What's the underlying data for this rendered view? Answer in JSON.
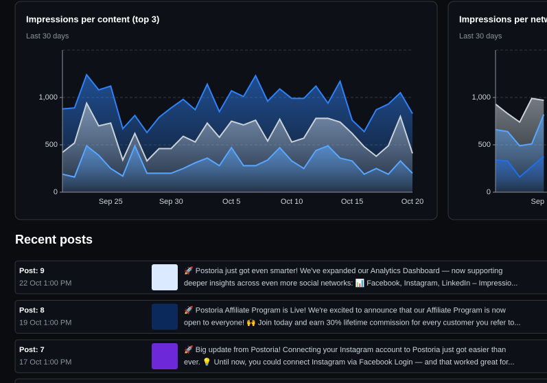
{
  "chart_data": [
    {
      "type": "area",
      "title": "Impressions per content (top 3)",
      "subtitle": "Last 30 days",
      "categories": [
        null,
        null,
        null,
        null,
        "Sep 25",
        null,
        null,
        null,
        null,
        "Sep 30",
        null,
        null,
        null,
        null,
        "Oct 5",
        null,
        null,
        null,
        null,
        "Oct 10",
        null,
        null,
        null,
        null,
        "Oct 15",
        null,
        null,
        null,
        null,
        "Oct 20"
      ],
      "ylim": [
        0,
        1500
      ],
      "yticks": [
        0,
        500,
        {
          "value": 1000,
          "label": "1,000"
        }
      ],
      "grid": true,
      "series": [
        {
          "color": "#2f81f7",
          "values": [
            880,
            890,
            1240,
            1080,
            1120,
            670,
            810,
            630,
            790,
            890,
            980,
            870,
            1140,
            850,
            1070,
            1010,
            1230,
            960,
            1090,
            990,
            990,
            1120,
            940,
            1170,
            760,
            640,
            870,
            930,
            1050,
            830
          ]
        },
        {
          "color": "#c9d1d9",
          "values": [
            420,
            520,
            940,
            700,
            730,
            340,
            620,
            330,
            460,
            460,
            590,
            530,
            730,
            580,
            750,
            710,
            760,
            540,
            770,
            530,
            570,
            780,
            780,
            740,
            620,
            480,
            380,
            490,
            800,
            410
          ]
        },
        {
          "color": "#58a6ff",
          "values": [
            190,
            160,
            490,
            390,
            250,
            170,
            490,
            200,
            200,
            200,
            250,
            310,
            360,
            280,
            470,
            280,
            280,
            340,
            470,
            330,
            250,
            440,
            490,
            360,
            330,
            190,
            250,
            190,
            330,
            200
          ]
        }
      ]
    },
    {
      "type": "area",
      "title": "Impressions per netw",
      "subtitle": "Last 30 days",
      "categories": [
        null,
        null,
        null,
        null,
        "Sep"
      ],
      "ylim": [
        0,
        1500
      ],
      "yticks": [
        0,
        500,
        {
          "value": 1000,
          "label": "1,000"
        }
      ],
      "grid": true,
      "series": [
        {
          "color": "#c9d1d9",
          "values": [
            930,
            830,
            740,
            990,
            970
          ]
        },
        {
          "color": "#58a6ff",
          "values": [
            660,
            640,
            490,
            510,
            820
          ]
        },
        {
          "color": "#1f6feb",
          "values": [
            340,
            330,
            160,
            270,
            380
          ]
        }
      ]
    }
  ],
  "recent_posts": {
    "title": "Recent posts",
    "posts": [
      {
        "title": "Post: 9",
        "date": "22 Oct 1:00 PM",
        "lines": [
          "🚀 Postoria just got even smarter! We've expanded our Analytics Dashboard — now supporting",
          "deeper insights across even more social networks: 📊 Facebook, Instagram, LinkedIn – Impressio..."
        ]
      },
      {
        "title": "Post: 8",
        "date": "19 Oct 1:00 PM",
        "lines": [
          "🚀 Postoria Affiliate Program is Live! We're excited to announce that our Affiliate Program is now",
          "open to everyone! 🙌 Join today and earn 30% lifetime commission for every customer you refer to..."
        ]
      },
      {
        "title": "Post: 7",
        "date": "17 Oct 1:00 PM",
        "lines": [
          "🚀 Big update from Postoria! Connecting your Instagram account to Postoria just got easier than",
          "ever. 💡 Until now, you could connect Instagram via Facebook Login — and that worked great for..."
        ]
      }
    ]
  }
}
